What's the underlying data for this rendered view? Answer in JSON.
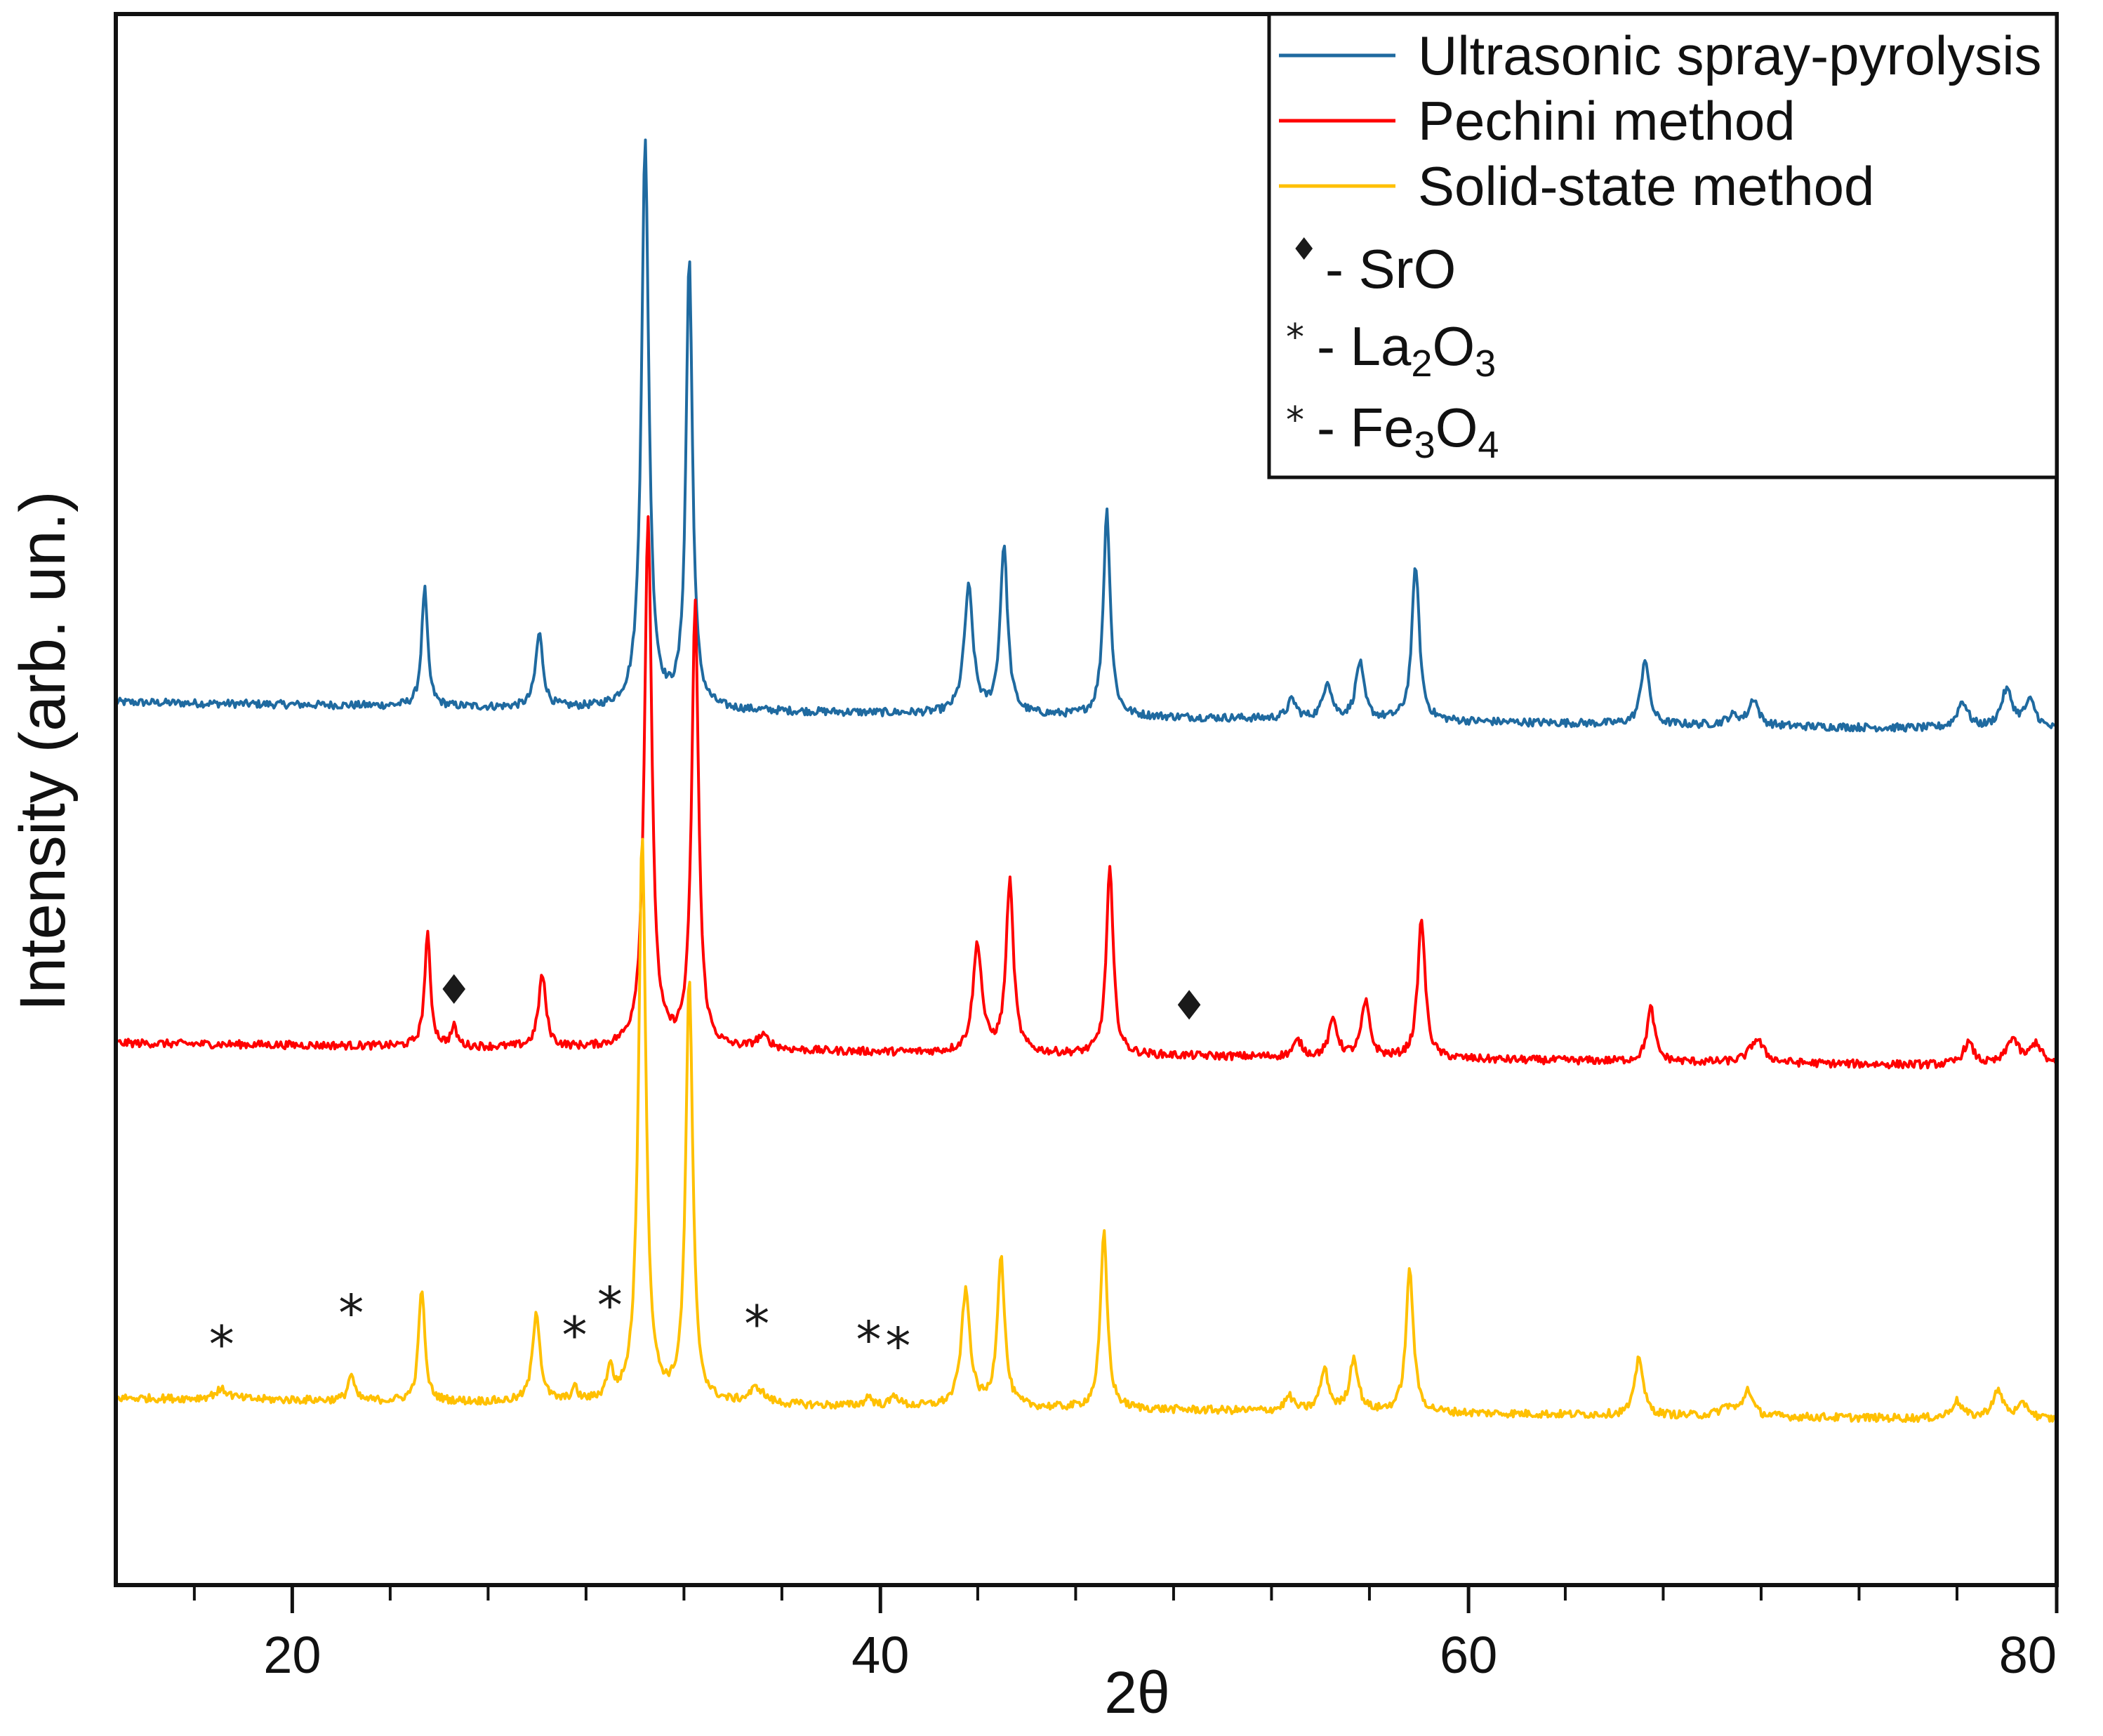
{
  "chart_data": {
    "type": "line",
    "title": "",
    "xlabel": "2θ",
    "ylabel": "Intensity (arb. un.)",
    "xlim": [
      14,
      80
    ],
    "ylim": [
      0,
      100
    ],
    "x_major_ticks": [
      20,
      40,
      60,
      80
    ],
    "x_tick_labels": [
      "20",
      "40",
      "60",
      "80"
    ],
    "x_minor_step": 3.33,
    "y_ticks_shown": false,
    "legend": {
      "location": "top-right",
      "entries": [
        {
          "label": "Ultrasonic spray-pyrolysis",
          "color": "#1f6aa0"
        },
        {
          "label": "Pechini method",
          "color": "#ff0000"
        },
        {
          "label": "Solid-state method",
          "color": "#ffc000"
        }
      ],
      "markers": [
        {
          "symbol": "♦",
          "text": "- SrO",
          "formula": {
            "base": "SrO"
          }
        },
        {
          "symbol": "*",
          "text": "- La",
          "formula": {
            "el1": "La",
            "n1": "2",
            "el2": "O",
            "n2": "3"
          }
        },
        {
          "symbol": "*",
          "text": "- Fe",
          "formula": {
            "el1": "Fe",
            "n1": "3",
            "el2": "O",
            "n2": "4"
          }
        }
      ]
    },
    "series": [
      {
        "name": "Ultrasonic spray-pyrolysis",
        "color": "#1f6aa0",
        "baseline": 56.2,
        "end_baseline": 54.4,
        "peaks": [
          {
            "x": 24.5,
            "h": 7.5,
            "w": 0.12
          },
          {
            "x": 28.4,
            "h": 4.7,
            "w": 0.15
          },
          {
            "x": 32.0,
            "h": 36.0,
            "w": 0.15
          },
          {
            "x": 33.5,
            "h": 28.7,
            "w": 0.13
          },
          {
            "x": 43.0,
            "h": 8.0,
            "w": 0.18
          },
          {
            "x": 44.2,
            "h": 10.7,
            "w": 0.15
          },
          {
            "x": 47.7,
            "h": 13.1,
            "w": 0.14
          },
          {
            "x": 54.0,
            "h": 1.2,
            "w": 0.18
          },
          {
            "x": 55.2,
            "h": 2.4,
            "w": 0.17
          },
          {
            "x": 56.3,
            "h": 3.6,
            "w": 0.17
          },
          {
            "x": 58.2,
            "h": 9.9,
            "w": 0.15
          },
          {
            "x": 66.0,
            "h": 4.2,
            "w": 0.16
          },
          {
            "x": 69.0,
            "h": 0.6,
            "w": 0.28
          },
          {
            "x": 69.7,
            "h": 1.7,
            "w": 0.18
          },
          {
            "x": 76.8,
            "h": 1.7,
            "w": 0.22
          },
          {
            "x": 78.3,
            "h": 2.4,
            "w": 0.24
          },
          {
            "x": 79.1,
            "h": 1.7,
            "w": 0.24
          }
        ]
      },
      {
        "name": "Pechini method",
        "color": "#ff0000",
        "baseline": 34.5,
        "end_baseline": 33.0,
        "peaks": [
          {
            "x": 24.6,
            "h": 7.1,
            "w": 0.12
          },
          {
            "x": 25.5,
            "h": 1.2,
            "w": 0.12
          },
          {
            "x": 28.5,
            "h": 4.6,
            "w": 0.15
          },
          {
            "x": 32.1,
            "h": 33.8,
            "w": 0.15
          },
          {
            "x": 33.7,
            "h": 28.2,
            "w": 0.14
          },
          {
            "x": 36.0,
            "h": 0.8,
            "w": 0.3
          },
          {
            "x": 43.3,
            "h": 6.9,
            "w": 0.18
          },
          {
            "x": 44.4,
            "h": 10.9,
            "w": 0.15
          },
          {
            "x": 47.8,
            "h": 11.9,
            "w": 0.14
          },
          {
            "x": 54.2,
            "h": 1.0,
            "w": 0.18
          },
          {
            "x": 55.4,
            "h": 2.4,
            "w": 0.17
          },
          {
            "x": 56.5,
            "h": 3.5,
            "w": 0.17
          },
          {
            "x": 58.4,
            "h": 8.9,
            "w": 0.15
          },
          {
            "x": 66.2,
            "h": 3.4,
            "w": 0.16
          },
          {
            "x": 69.8,
            "h": 1.5,
            "w": 0.28
          },
          {
            "x": 77.0,
            "h": 1.4,
            "w": 0.22
          },
          {
            "x": 78.5,
            "h": 1.7,
            "w": 0.24
          },
          {
            "x": 79.3,
            "h": 1.4,
            "w": 0.24
          }
        ]
      },
      {
        "name": "Solid-state method",
        "color": "#ffc000",
        "baseline": 11.9,
        "end_baseline": 10.5,
        "peaks": [
          {
            "x": 17.6,
            "h": 0.6,
            "w": 0.3
          },
          {
            "x": 22.0,
            "h": 1.7,
            "w": 0.12
          },
          {
            "x": 24.4,
            "h": 7.3,
            "w": 0.12
          },
          {
            "x": 28.3,
            "h": 5.8,
            "w": 0.15
          },
          {
            "x": 29.6,
            "h": 0.8,
            "w": 0.12
          },
          {
            "x": 30.8,
            "h": 2.0,
            "w": 0.12
          },
          {
            "x": 31.9,
            "h": 36.2,
            "w": 0.15
          },
          {
            "x": 33.5,
            "h": 27.0,
            "w": 0.14
          },
          {
            "x": 35.8,
            "h": 1.0,
            "w": 0.3
          },
          {
            "x": 39.6,
            "h": 0.6,
            "w": 0.15
          },
          {
            "x": 40.5,
            "h": 0.7,
            "w": 0.15
          },
          {
            "x": 42.9,
            "h": 7.3,
            "w": 0.18
          },
          {
            "x": 44.1,
            "h": 9.6,
            "w": 0.15
          },
          {
            "x": 47.6,
            "h": 11.2,
            "w": 0.14
          },
          {
            "x": 53.9,
            "h": 0.9,
            "w": 0.18
          },
          {
            "x": 55.1,
            "h": 2.6,
            "w": 0.17
          },
          {
            "x": 56.1,
            "h": 3.4,
            "w": 0.17
          },
          {
            "x": 58.0,
            "h": 9.1,
            "w": 0.15
          },
          {
            "x": 65.8,
            "h": 3.8,
            "w": 0.16
          },
          {
            "x": 68.8,
            "h": 0.6,
            "w": 0.28
          },
          {
            "x": 69.5,
            "h": 1.7,
            "w": 0.18
          },
          {
            "x": 76.6,
            "h": 1.1,
            "w": 0.22
          },
          {
            "x": 78.0,
            "h": 1.7,
            "w": 0.24
          },
          {
            "x": 78.9,
            "h": 0.9,
            "w": 0.24
          }
        ]
      }
    ],
    "annotations": [
      {
        "series": "Pechini method",
        "symbol": "♦",
        "x": 25.5,
        "y": 37.0
      },
      {
        "series": "Pechini method",
        "symbol": "♦",
        "x": 50.5,
        "y": 36.0
      },
      {
        "series": "Solid-state method",
        "symbol": "*",
        "x": 17.6,
        "y": 14.2
      },
      {
        "series": "Solid-state method",
        "symbol": "*",
        "x": 22.0,
        "y": 16.2
      },
      {
        "series": "Solid-state method",
        "symbol": "*",
        "x": 29.6,
        "y": 14.8
      },
      {
        "series": "Solid-state method",
        "symbol": "*",
        "x": 30.8,
        "y": 16.7
      },
      {
        "series": "Solid-state method",
        "symbol": "*",
        "x": 35.8,
        "y": 15.5
      },
      {
        "series": "Solid-state method",
        "symbol": "*",
        "x": 39.6,
        "y": 14.5
      },
      {
        "series": "Solid-state method",
        "symbol": "*",
        "x": 40.6,
        "y": 14.1
      }
    ]
  }
}
